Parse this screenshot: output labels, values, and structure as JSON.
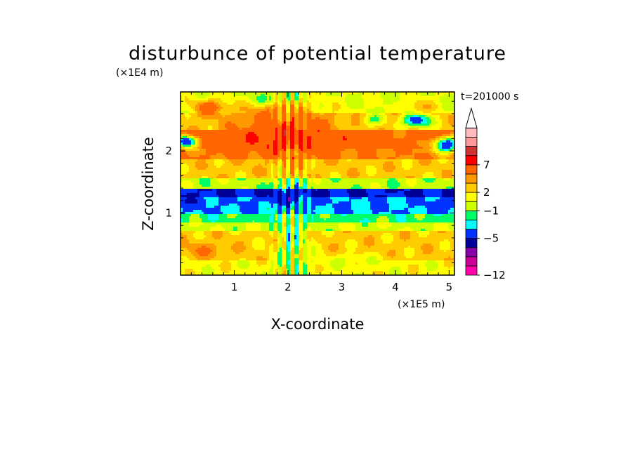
{
  "chart_data": {
    "type": "heatmap",
    "title": "disturbunce of potential temperature",
    "xlabel": "X-coordinate",
    "ylabel": "Z-coordinate",
    "x_unit": "(×1E5 m)",
    "y_unit": "(×1E4 m)",
    "time_label": "t=201000 s",
    "xlim": [
      0,
      5.1
    ],
    "ylim": [
      0,
      2.95
    ],
    "x_ticks": [
      {
        "value": 1,
        "label": "1"
      },
      {
        "value": 2,
        "label": "2"
      },
      {
        "value": 3,
        "label": "3"
      },
      {
        "value": 4,
        "label": "4"
      },
      {
        "value": 5,
        "label": "5"
      }
    ],
    "y_ticks": [
      {
        "value": 1,
        "label": "1"
      },
      {
        "value": 2,
        "label": "2"
      }
    ],
    "colorbar": {
      "extend_max": true,
      "colors": [
        "#ff00aa",
        "#cc0099",
        "#8800aa",
        "#000099",
        "#0033ff",
        "#00ffff",
        "#00ff66",
        "#ccff00",
        "#ffff00",
        "#ffcc00",
        "#ff9900",
        "#ff6600",
        "#ff0000",
        "#cc3333",
        "#ff9999",
        "#ffbbbb"
      ],
      "tick_labels": [
        {
          "index": 0,
          "label": "−12"
        },
        {
          "index": 4,
          "label": "−5"
        },
        {
          "index": 7,
          "label": "−1"
        },
        {
          "index": 9,
          "label": "2"
        },
        {
          "index": 12,
          "label": "7"
        }
      ]
    },
    "horizontal_bands": [
      {
        "z_from": 0.0,
        "z_to": 0.25,
        "value": 0.5
      },
      {
        "z_from": 0.25,
        "z_to": 0.7,
        "value": 1.5
      },
      {
        "z_from": 0.7,
        "z_to": 0.85,
        "value": -0.2
      },
      {
        "z_from": 0.85,
        "z_to": 1.0,
        "value": -1.5
      },
      {
        "z_from": 1.0,
        "z_to": 1.25,
        "value": -3.0
      },
      {
        "z_from": 1.25,
        "z_to": 1.4,
        "value": -5.0
      },
      {
        "z_from": 1.4,
        "z_to": 1.55,
        "value": -0.5
      },
      {
        "z_from": 1.55,
        "z_to": 1.85,
        "value": 1.5
      },
      {
        "z_from": 1.85,
        "z_to": 2.05,
        "value": 3.0
      },
      {
        "z_from": 2.05,
        "z_to": 2.35,
        "value": 4.0
      },
      {
        "z_from": 2.35,
        "z_to": 2.6,
        "value": 1.5
      },
      {
        "z_from": 2.6,
        "z_to": 2.95,
        "value": 0.0
      }
    ],
    "features": [
      {
        "x": 1.9,
        "z": 2.3,
        "rx": 0.9,
        "rz": 0.35,
        "value": 5.0
      },
      {
        "x": 1.7,
        "z": 2.6,
        "rx": 0.5,
        "rz": 0.2,
        "value": 3.0
      },
      {
        "x": 0.55,
        "z": 2.7,
        "rx": 0.35,
        "rz": 0.12,
        "value": 4.0
      },
      {
        "x": 0.9,
        "z": 2.55,
        "rx": 0.2,
        "rz": 0.1,
        "value": 2.0
      },
      {
        "x": 4.4,
        "z": 2.5,
        "rx": 0.25,
        "rz": 0.12,
        "value": -5.0
      },
      {
        "x": 4.45,
        "z": 2.7,
        "rx": 0.3,
        "rz": 0.13,
        "value": 2.0
      },
      {
        "x": 4.95,
        "z": 2.1,
        "rx": 0.25,
        "rz": 0.12,
        "value": -5.0
      },
      {
        "x": 3.6,
        "z": 2.5,
        "rx": 0.2,
        "rz": 0.1,
        "value": -1.0
      },
      {
        "x": 4.1,
        "z": 2.2,
        "rx": 0.3,
        "rz": 0.13,
        "value": 3.0
      },
      {
        "x": 0.1,
        "z": 2.15,
        "rx": 0.2,
        "rz": 0.1,
        "value": -5.0
      },
      {
        "x": 1.6,
        "z": 2.85,
        "rx": 0.35,
        "rz": 0.1,
        "value": -1.0
      },
      {
        "x": 0.45,
        "z": 0.4,
        "rx": 0.4,
        "rz": 0.12,
        "value": 3.0
      },
      {
        "x": 3.2,
        "z": 0.25,
        "rx": 0.6,
        "rz": 0.1,
        "value": 0.0
      },
      {
        "x": 2.1,
        "z": 0.6,
        "rx": 0.35,
        "rz": 0.6,
        "value": -1.0
      },
      {
        "x": 2.0,
        "z": 1.25,
        "rx": 0.4,
        "rz": 0.15,
        "value": -5.0
      },
      {
        "x": 5.0,
        "z": 1.15,
        "rx": 0.25,
        "rz": 0.08,
        "value": -5.0
      },
      {
        "x": 0.2,
        "z": 1.2,
        "rx": 0.25,
        "rz": 0.08,
        "value": -5.0
      }
    ]
  }
}
